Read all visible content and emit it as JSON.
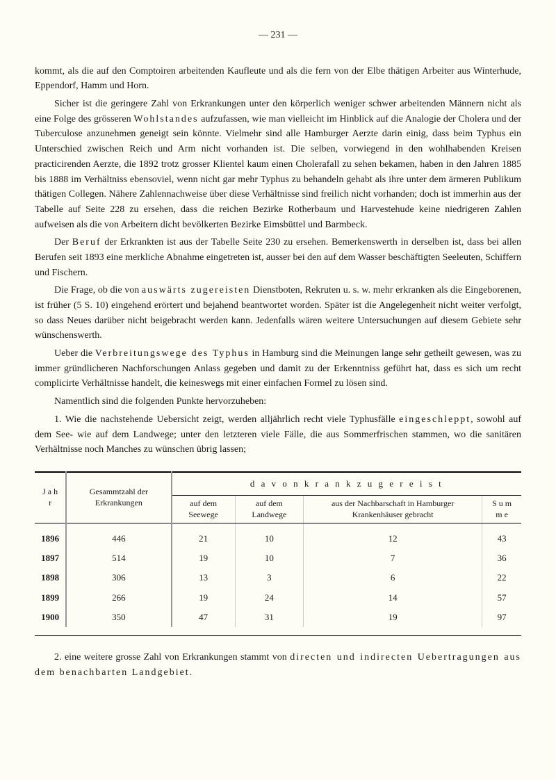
{
  "page_number": "— 231 —",
  "paragraphs": {
    "p1": "kommt, als die auf den Comptoiren arbeitenden Kaufleute und als die fern von der Elbe thätigen Arbeiter aus Winterhude, Eppendorf, Hamm und Horn.",
    "p2a": "Sicher ist die geringere Zahl von Erkrankungen unter den körperlich weniger schwer arbeitenden Männern nicht als eine Folge des grösseren ",
    "p2_spaced1": "Wohlstandes",
    "p2b": " aufzufassen, wie man vielleicht im Hinblick auf die Analogie der Cholera und der Tuberculose anzunehmen geneigt sein könnte. Vielmehr sind alle Hamburger Aerzte darin einig, dass beim Typhus ein Unterschied zwischen Reich und Arm nicht vorhanden ist. Die selben, vorwiegend in den wohlhabenden Kreisen practicirenden Aerzte, die 1892 trotz grosser Klientel kaum einen Cholerafall zu sehen bekamen, haben in den Jahren 1885 bis 1888 im Verhältniss ebensoviel, wenn nicht gar mehr Typhus zu behandeln gehabt als ihre unter dem ärmeren Publikum thätigen Collegen. Nähere Zahlennachweise über diese Verhältnisse sind freilich nicht vorhanden; doch ist immerhin aus der Tabelle auf Seite 228 zu ersehen, dass die reichen Bezirke Rotherbaum und Harvestehude keine niedrigeren Zahlen aufweisen als die von Arbeitern dicht bevölkerten Bezirke Eimsbüttel und Barmbeck.",
    "p3a": "Der ",
    "p3_spaced1": "Beruf",
    "p3b": " der Erkrankten ist aus der Tabelle Seite 230 zu ersehen. Bemerkenswerth in derselben ist, dass bei allen Berufen seit 1893 eine merkliche Abnahme eingetreten ist, ausser bei den auf dem Wasser beschäftigten Seeleuten, Schiffern und Fischern.",
    "p4a": "Die Frage, ob die von ",
    "p4_spaced1": "auswärts zugereisten",
    "p4b": " Dienstboten, Rekruten u. s. w. mehr erkranken als die Eingeborenen, ist früher (5 S. 10) eingehend erörtert und bejahend beantwortet worden. Später ist die Angelegenheit nicht weiter verfolgt, so dass Neues darüber nicht beigebracht werden kann. Jedenfalls wären weitere Untersuchungen auf diesem Gebiete sehr wünschenswerth.",
    "p5a": "Ueber die ",
    "p5_spaced1": "Verbreitungswege des Typhus",
    "p5b": " in Hamburg sind die Meinungen lange sehr getheilt gewesen, was zu immer gründlicheren Nachforschungen Anlass gegeben und damit zu der Erkenntniss geführt hat, dass es sich um recht complicirte Verhältnisse handelt, die keineswegs mit einer einfachen Formel zu lösen sind.",
    "p6": "Namentlich sind die folgenden Punkte hervorzuheben:",
    "p7a": "1. Wie die nachstehende Uebersicht zeigt, werden alljährlich recht viele Typhusfälle ",
    "p7_spaced1": "eingeschleppt",
    "p7b": ", sowohl auf dem See- wie auf dem Landwege; unter den letzteren viele Fälle, die aus Sommerfrischen stammen, wo die sanitären Verhältnisse noch Manches zu wünschen übrig lassen;"
  },
  "table": {
    "headers": {
      "jahr": "J a h r",
      "gesammt": "Gesammtzahl der Erkrankungen",
      "davon": "d a v o n   k r a n k   z u g e r e i s t",
      "seewege": "auf dem Seewege",
      "landwege": "auf dem Landwege",
      "kranken": "aus der Nachbarschaft in Hamburger Krankenhäuser gebracht",
      "summe": "S u m m e"
    },
    "rows": [
      {
        "jahr": "1896",
        "gesammt": "446",
        "see": "21",
        "land": "10",
        "kranken": "12",
        "summe": "43"
      },
      {
        "jahr": "1897",
        "gesammt": "514",
        "see": "19",
        "land": "10",
        "kranken": "7",
        "summe": "36"
      },
      {
        "jahr": "1898",
        "gesammt": "306",
        "see": "13",
        "land": "3",
        "kranken": "6",
        "summe": "22"
      },
      {
        "jahr": "1899",
        "gesammt": "266",
        "see": "19",
        "land": "24",
        "kranken": "14",
        "summe": "57"
      },
      {
        "jahr": "1900",
        "gesammt": "350",
        "see": "47",
        "land": "31",
        "kranken": "19",
        "summe": "97"
      }
    ]
  },
  "footer": {
    "a": "2. eine weitere grosse Zahl von Erkrankungen stammt von ",
    "spaced1": "directen und indirecten Uebertragungen aus dem benachbarten Landgebiet."
  }
}
